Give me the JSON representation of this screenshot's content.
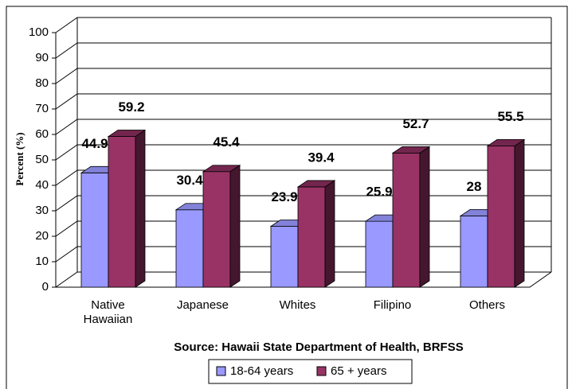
{
  "chart_data": {
    "type": "bar3d",
    "categories": [
      "Native Hawaiian",
      "Japanese",
      "Whites",
      "Filipino",
      "Others"
    ],
    "series": [
      {
        "name": "18-64 years",
        "color": "#9999ff",
        "values": [
          44.9,
          30.4,
          23.9,
          25.9,
          28
        ]
      },
      {
        "name": "65 + years",
        "color": "#993366",
        "values": [
          59.2,
          45.4,
          39.4,
          52.7,
          55.5
        ]
      }
    ],
    "ylabel": "Percent (%)",
    "source": "Source: Hawaii State Department of Health, BRFSS",
    "ylim": [
      0,
      100
    ],
    "yticks": [
      0,
      10,
      20,
      30,
      40,
      50,
      60,
      70,
      80,
      90,
      100
    ],
    "grid": true,
    "legend": "bottom"
  }
}
